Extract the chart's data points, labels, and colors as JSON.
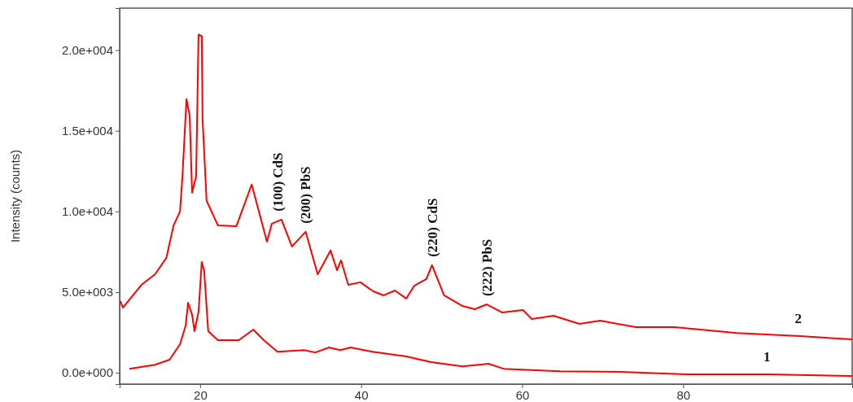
{
  "chart_data": {
    "type": "line",
    "ylabel": "Intensity (counts)",
    "xlim": [
      10,
      101
    ],
    "ylim": [
      -700,
      22600
    ],
    "xticks": [
      20,
      40,
      60,
      80
    ],
    "yticks": [
      {
        "value": 0,
        "label": "0.0e+000"
      },
      {
        "value": 5000,
        "label": "5.0e+003"
      },
      {
        "value": 10000,
        "label": "1.0e+004"
      },
      {
        "value": 15000,
        "label": "1.5e+004"
      },
      {
        "value": 20000,
        "label": "2.0e+004"
      }
    ],
    "series": [
      {
        "name": "2",
        "color": "#ff0000",
        "x": [
          10.1,
          10.4,
          12.7,
          14.4,
          15.8,
          16.7,
          17.5,
          17.8,
          18.3,
          18.7,
          19.0,
          19.5,
          19.8,
          20.2,
          20.3,
          20.8,
          22.2,
          24.5,
          26.4,
          28.3,
          28.9,
          30.1,
          31.4,
          33.1,
          34.6,
          36.2,
          37.0,
          37.5,
          38.4,
          39.9,
          41.5,
          42.8,
          44.2,
          45.6,
          46.6,
          48.1,
          48.8,
          50.3,
          52.6,
          54.1,
          55.6,
          57.5,
          60.1,
          61.2,
          63.9,
          67.1,
          69.7,
          74.1,
          78.9,
          86.7,
          94.5,
          101
        ],
        "values": [
          4440,
          4040,
          5450,
          6110,
          7120,
          9140,
          10000,
          12170,
          16970,
          15910,
          11160,
          12170,
          20960,
          20860,
          15710,
          10660,
          9140,
          9090,
          11670,
          8130,
          9240,
          9490,
          7830,
          8740,
          6110,
          7580,
          6360,
          6970,
          5450,
          5610,
          5050,
          4800,
          5100,
          4600,
          5400,
          5810,
          6670,
          4800,
          4140,
          3940,
          4240,
          3740,
          3890,
          3330,
          3540,
          3030,
          3230,
          2830,
          2830,
          2470,
          2270,
          2070
        ]
      },
      {
        "name": "1",
        "color": "#ff0000",
        "x": [
          11.2,
          14.4,
          16.2,
          17.5,
          18.2,
          18.5,
          19.0,
          19.3,
          19.8,
          20.2,
          20.5,
          21.0,
          22.2,
          24.8,
          26.6,
          27.9,
          29.6,
          32.9,
          34.3,
          36.0,
          37.4,
          38.7,
          41.4,
          45.6,
          48.7,
          52.6,
          55.8,
          57.7,
          64.7,
          72.9,
          80.4,
          90.6,
          101
        ],
        "values": [
          250,
          500,
          810,
          1770,
          2930,
          4340,
          3590,
          2580,
          3790,
          6870,
          6310,
          2580,
          2020,
          2020,
          2680,
          2020,
          1310,
          1410,
          1260,
          1570,
          1410,
          1570,
          1310,
          1010,
          660,
          400,
          560,
          250,
          100,
          50,
          -100,
          -100,
          -200
        ]
      }
    ],
    "annotations": [
      {
        "text": "(100) CdS",
        "x": 29.6,
        "y": 9500
      },
      {
        "text": "(200) PbS",
        "x": 33.1,
        "y": 8740
      },
      {
        "text": "(220) CdS",
        "x": 48.8,
        "y": 6670
      },
      {
        "text": "(222) PbS",
        "x": 55.6,
        "y": 4240
      }
    ]
  }
}
